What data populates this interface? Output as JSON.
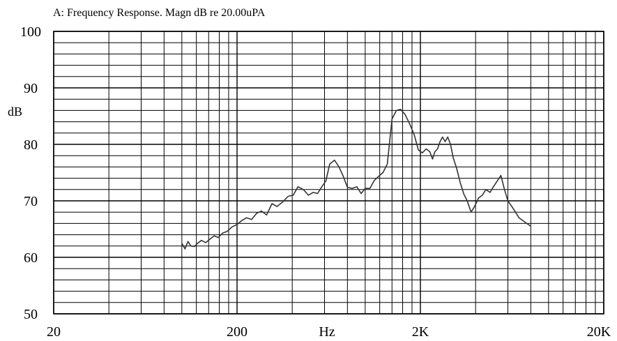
{
  "chart_data": {
    "type": "line",
    "title": "A: Frequency Response. Magn dB re 20.00uPA",
    "xlabel": "Hz",
    "ylabel": "dB",
    "x_scale": "log",
    "xlim": [
      20,
      20000
    ],
    "ylim": [
      50,
      100
    ],
    "x_ticks": [
      {
        "value": 20,
        "label": "20"
      },
      {
        "value": 200,
        "label": "200"
      },
      {
        "value": 2000,
        "label": "2K"
      },
      {
        "value": 20000,
        "label": "20K"
      }
    ],
    "y_ticks": [
      {
        "value": 100,
        "label": "100"
      },
      {
        "value": 90,
        "label": "90"
      },
      {
        "value": 80,
        "label": "80"
      },
      {
        "value": 70,
        "label": "70"
      },
      {
        "value": 60,
        "label": "60"
      },
      {
        "value": 50,
        "label": "50"
      }
    ],
    "grid": true,
    "series": [
      {
        "color": "#333333",
        "x": [
          100,
          104,
          108,
          112,
          117,
          122,
          128,
          135,
          142,
          150,
          158,
          167,
          177,
          188,
          200,
          212,
          225,
          240,
          256,
          272,
          290,
          310,
          330,
          355,
          380,
          405,
          430,
          460,
          490,
          520,
          550,
          580,
          610,
          640,
          680,
          720,
          760,
          800,
          850,
          900,
          950,
          1000,
          1060,
          1120,
          1180,
          1250,
          1320,
          1400,
          1480,
          1560,
          1650,
          1750,
          1850,
          1950,
          2050,
          2150,
          2250,
          2330,
          2400,
          2480,
          2560,
          2640,
          2730,
          2820,
          2920,
          3020,
          3150,
          3300,
          3450,
          3600,
          3780,
          3950,
          4150,
          4350,
          4550,
          4800,
          5000,
          5250,
          5500,
          5750,
          6000,
          6300,
          6600,
          6900,
          7250,
          7600,
          8000
        ],
        "values": [
          62.5,
          61.5,
          62.8,
          62.0,
          61.9,
          62.5,
          63.0,
          62.6,
          63.2,
          63.8,
          63.5,
          64.3,
          64.6,
          65.4,
          65.8,
          66.5,
          67.0,
          66.7,
          67.8,
          68.2,
          67.5,
          69.5,
          69.0,
          69.8,
          70.8,
          71.0,
          72.5,
          72.0,
          71.0,
          71.5,
          71.3,
          72.5,
          73.5,
          76.5,
          77.2,
          76.0,
          74.3,
          72.4,
          72.2,
          72.5,
          71.3,
          72.2,
          72.2,
          73.6,
          74.3,
          75.0,
          76.5,
          84.5,
          86.0,
          86.2,
          85.3,
          83.6,
          81.7,
          79.0,
          78.5,
          79.2,
          78.7,
          77.4,
          78.7,
          79.2,
          80.5,
          81.3,
          80.5,
          81.3,
          80.0,
          77.6,
          75.8,
          73.2,
          71.2,
          70.0,
          68.0,
          69.0,
          70.5,
          71.0,
          72.0,
          71.5,
          72.5,
          73.5,
          74.5,
          72.0,
          70.0,
          69.0,
          68.0,
          67.0,
          66.5,
          66.0,
          65.5
        ]
      }
    ]
  }
}
